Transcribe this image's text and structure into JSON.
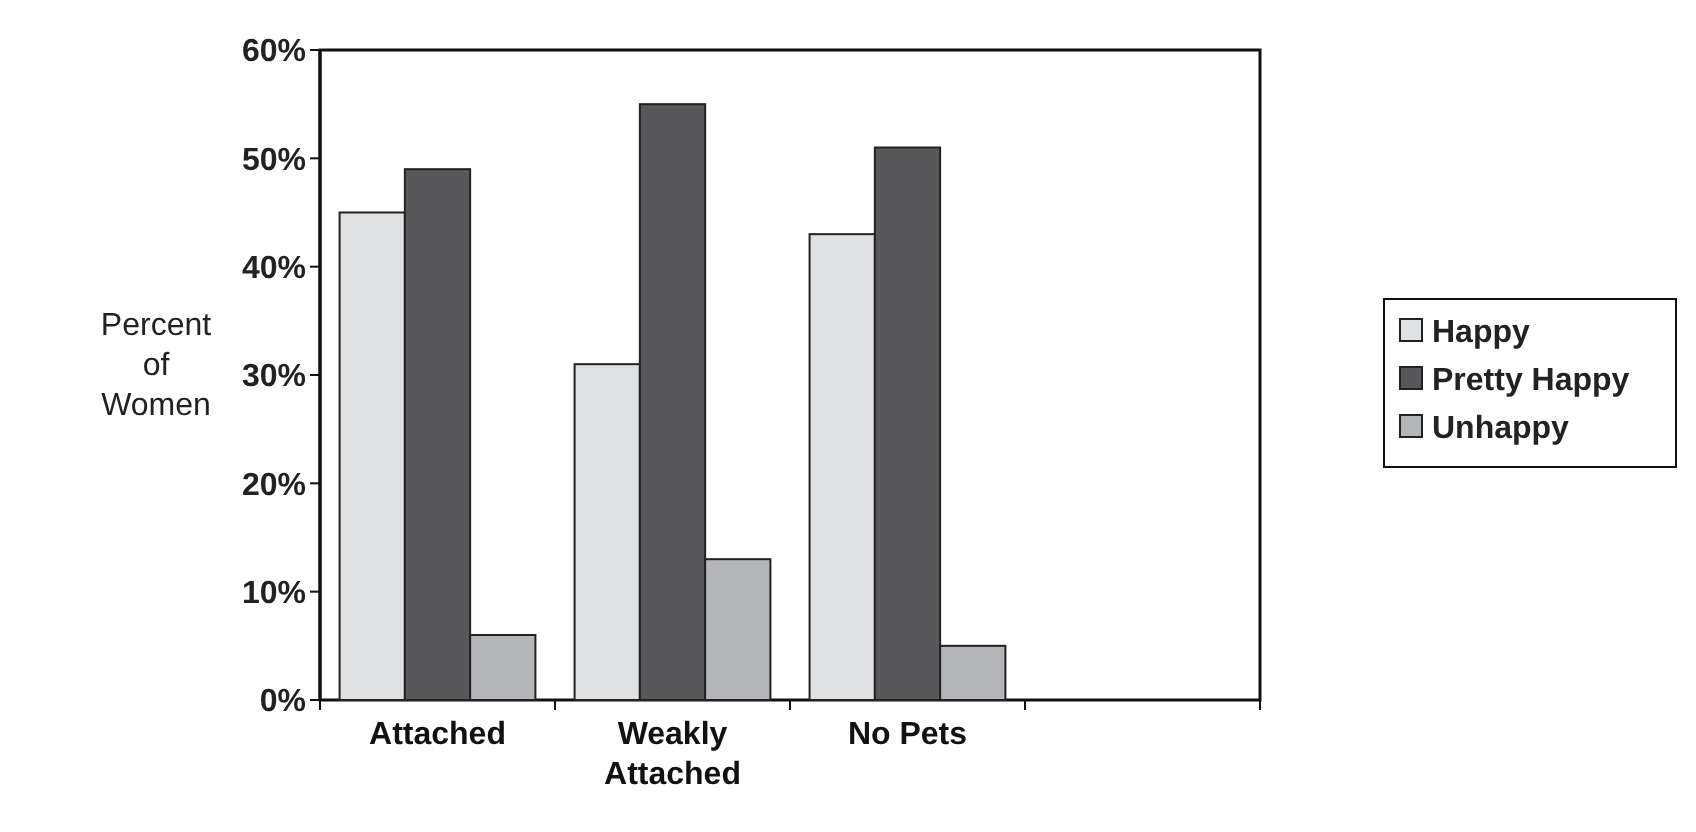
{
  "chart_data": {
    "type": "bar",
    "ylabel": "Percent of Women",
    "categories": [
      "Attached",
      "Weakly Attached",
      "No Pets",
      null
    ],
    "series": [
      {
        "name": "Happy",
        "color": "#e0e1e3",
        "values": [
          45,
          31,
          43,
          null
        ]
      },
      {
        "name": "Pretty Happy",
        "color": "#58585a",
        "values": [
          49,
          55,
          51,
          null
        ]
      },
      {
        "name": "Unhappy",
        "color": "#b4b5b8",
        "values": [
          6,
          13,
          5,
          null
        ]
      }
    ],
    "ylim": [
      0,
      60
    ],
    "yticks": [
      {
        "value": 0,
        "label": "0%"
      },
      {
        "value": 10,
        "label": "10%"
      },
      {
        "value": 20,
        "label": "20%"
      },
      {
        "value": 30,
        "label": "30%"
      },
      {
        "value": 40,
        "label": "40%"
      },
      {
        "value": 50,
        "label": "50%"
      },
      {
        "value": 60,
        "label": "60%"
      }
    ],
    "legend": "right",
    "grid": false
  }
}
